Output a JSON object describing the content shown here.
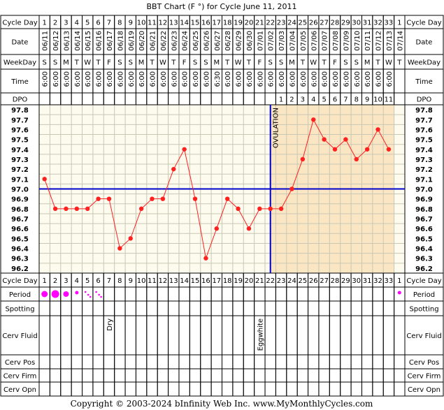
{
  "title": "BBT Chart (F °) for Cycle June 11, 2011",
  "copyright": "Copyright © 2003-2024 bInfinity Web Inc.    www.MyMonthlyCycles.com",
  "row_labels": {
    "cycle_day": "Cycle Day",
    "date": "Date",
    "weekday": "WeekDay",
    "time": "Time",
    "dpo": "DPO",
    "period": "Period",
    "spotting": "Spotting",
    "cerv_fluid": "Cerv Fluid",
    "cerv_pos": "Cerv Pos",
    "cerv_firm": "Cerv Firm",
    "cerv_opn": "Cerv Opn"
  },
  "chart_data": {
    "type": "line",
    "y_unit": "F",
    "ylim": [
      96.2,
      97.8
    ],
    "yticks": [
      "97.8",
      "97.7",
      "97.6",
      "97.5",
      "97.4",
      "97.3",
      "97.2",
      "97.1",
      "97.0",
      "96.9",
      "96.8",
      "96.7",
      "96.6",
      "96.5",
      "96.4",
      "96.3",
      "96.2"
    ],
    "cycle_days": [
      "1",
      "2",
      "3",
      "4",
      "5",
      "6",
      "7",
      "8",
      "9",
      "10",
      "11",
      "12",
      "13",
      "14",
      "15",
      "16",
      "17",
      "18",
      "19",
      "20",
      "21",
      "22",
      "23",
      "24",
      "25",
      "26",
      "27",
      "28",
      "29",
      "30",
      "31",
      "32",
      "33",
      "1"
    ],
    "dates": [
      "06/11",
      "06/12",
      "06/13",
      "06/14",
      "06/15",
      "06/16",
      "06/17",
      "06/18",
      "06/19",
      "06/20",
      "06/21",
      "06/22",
      "06/23",
      "06/24",
      "06/25",
      "06/26",
      "06/27",
      "06/28",
      "06/29",
      "06/30",
      "07/01",
      "07/02",
      "07/03",
      "07/04",
      "07/05",
      "07/06",
      "07/07",
      "07/08",
      "07/09",
      "07/10",
      "07/11",
      "07/12",
      "07/13",
      "07/14"
    ],
    "weekdays": [
      "S",
      "S",
      "M",
      "T",
      "W",
      "T",
      "F",
      "S",
      "S",
      "M",
      "T",
      "W",
      "T",
      "F",
      "S",
      "S",
      "M",
      "T",
      "W",
      "T",
      "F",
      "S",
      "S",
      "M",
      "T",
      "W",
      "T",
      "F",
      "S",
      "S",
      "M",
      "T",
      "W",
      "T"
    ],
    "times": [
      "6:00",
      "6:00",
      "6:00",
      "6:00",
      "6:00",
      "6:00",
      "6:00",
      "6:00",
      "6:00",
      "6:00",
      "6:00",
      "6:00",
      "6:00",
      "6:00",
      "6:00",
      "6:00",
      "6:30",
      "6:00",
      "6:00",
      "6:00",
      "6:00",
      "6:00",
      "6:00",
      "6:00",
      "6:00",
      "6:00",
      "6:00",
      "6:00",
      "6:00",
      "6:00",
      "6:00",
      "6:00",
      "6:00",
      ""
    ],
    "dpo": [
      "",
      "",
      "",
      "",
      "",
      "",
      "",
      "",
      "",
      "",
      "",
      "",
      "",
      "",
      "",
      "",
      "",
      "",
      "",
      "",
      "",
      "",
      "1",
      "2",
      "3",
      "4",
      "5",
      "6",
      "7",
      "8",
      "9",
      "10",
      "11",
      ""
    ],
    "temps": [
      97.1,
      96.8,
      96.8,
      96.8,
      96.8,
      96.9,
      96.9,
      96.4,
      96.5,
      96.8,
      96.9,
      96.9,
      97.2,
      97.4,
      96.9,
      96.3,
      96.6,
      96.9,
      96.8,
      96.6,
      96.8,
      96.8,
      96.8,
      97.0,
      97.3,
      97.7,
      97.5,
      97.4,
      97.5,
      97.3,
      97.4,
      97.6,
      97.4,
      null
    ],
    "coverline": 97.0,
    "ovulation_day": 22,
    "ovulation_label": "OVULATION",
    "period": [
      "heavy",
      "heavy",
      "medium",
      "light",
      "spot2",
      "spot2",
      "",
      "",
      "",
      "",
      "",
      "",
      "",
      "",
      "",
      "",
      "",
      "",
      "",
      "",
      "",
      "",
      "",
      "",
      "",
      "",
      "",
      "",
      "",
      "",
      "",
      "",
      "",
      "light"
    ],
    "cerv_fluid": [
      "",
      "",
      "",
      "",
      "",
      "",
      "Dry",
      "",
      "",
      "",
      "",
      "",
      "",
      "",
      "",
      "",
      "",
      "",
      "",
      "",
      "Eggwhite",
      "",
      "",
      "",
      "",
      "",
      "",
      "",
      "",
      "",
      "",
      "",
      "",
      ""
    ],
    "colors": {
      "grid_bg": "#fdfbee",
      "luteal_bg": "#fbe6c3",
      "grid_line": "#c8c8b4",
      "cell_border": "#000000",
      "header_bg": "#f0f0f0",
      "temp_line": "#ff2020",
      "coverline": "#0000cc",
      "ovulation": "#0000cc",
      "period": "#ff00ff"
    }
  }
}
